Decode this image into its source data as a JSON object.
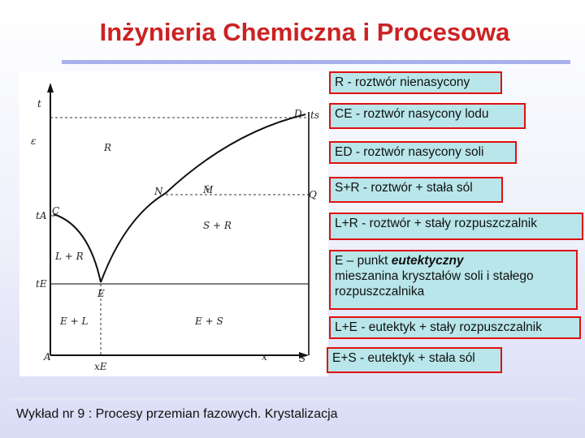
{
  "title": "Inżynieria Chemiczna i Procesowa",
  "footer": "Wykład nr 9  : Procesy przemian fazowych.  Krystalizacja",
  "diagram": {
    "axis_t": "t",
    "axis_x": "x",
    "point_A": "A",
    "point_S": "S",
    "point_C": "C",
    "point_D": "D",
    "point_E": "E",
    "point_N": "N",
    "point_M": "M",
    "point_Q": "Q",
    "tick_tA": "tA",
    "tick_tE": "tE",
    "tick_ts": "ts",
    "tick_xE": "xE",
    "small_mark": "ε",
    "region_R": "R",
    "region_SR": "S + R",
    "region_LR": "L + R",
    "region_EL": "E + L",
    "region_ES": "E + S"
  },
  "legend": [
    {
      "text": "R - roztwór nienasycony"
    },
    {
      "text": "CE - roztwór nasycony lodu"
    },
    {
      "text": "ED - roztwór nasycony soli"
    },
    {
      "text": "S+R - roztwór + stała sól"
    },
    {
      "text": "L+R - roztwór + stały rozpuszczalnik"
    },
    {
      "line1_prefix": "E – punkt ",
      "line1_em": "eutektyczny",
      "line2": "mieszanina kryształów soli i stałego",
      "line3": "rozpuszczalnika"
    },
    {
      "text": "L+E - eutektyk + stały rozpuszczalnik"
    },
    {
      "text": "E+S - eutektyk + stała sól"
    }
  ],
  "colors": {
    "title": "#cc2222",
    "legend_border": "#e01010",
    "legend_fill": "#b8e6ea"
  }
}
